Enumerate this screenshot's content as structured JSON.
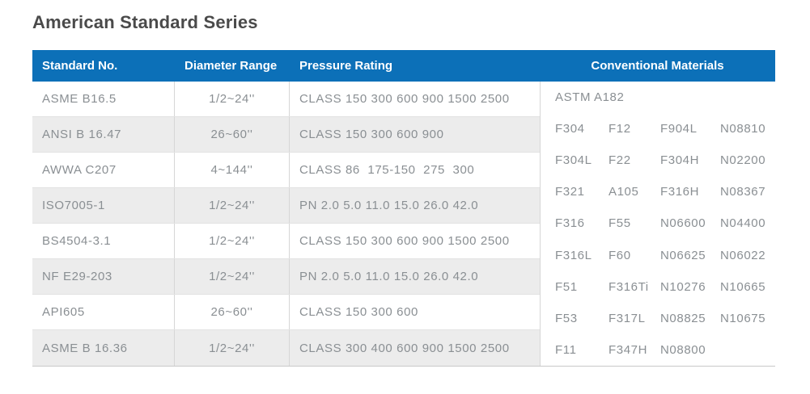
{
  "page": {
    "title": "American Standard Series"
  },
  "colors": {
    "accent_blue": "#0c70b8",
    "alt_row_gray": "#ececec",
    "cell_text_gray": "#8a8f93"
  },
  "table": {
    "headers": {
      "standard": "Standard No.",
      "diameter": "Diameter Range",
      "pressure": "Pressure Rating",
      "materials": "Conventional Materials"
    },
    "rows": [
      {
        "standard": "ASME B16.5",
        "diameter": "1/2~24''",
        "pressure": "CLASS 150 300 600 900 1500 2500"
      },
      {
        "standard": "ANSI B 16.47",
        "diameter": "26~60''",
        "pressure": "CLASS 150 300 600 900"
      },
      {
        "standard": "AWWA C207",
        "diameter": "4~144''",
        "pressure": "CLASS 86  175-150  275  300"
      },
      {
        "standard": "ISO7005-1",
        "diameter": "1/2~24''",
        "pressure": "PN 2.0 5.0 11.0 15.0 26.0 42.0"
      },
      {
        "standard": "BS4504-3.1",
        "diameter": "1/2~24''",
        "pressure": "CLASS 150 300 600 900 1500 2500"
      },
      {
        "standard": "NF E29-203",
        "diameter": "1/2~24''",
        "pressure": "PN 2.0 5.0 11.0 15.0 26.0 42.0"
      },
      {
        "standard": "API605",
        "diameter": "26~60''",
        "pressure": "CLASS 150 300 600"
      },
      {
        "standard": "ASME B 16.36",
        "diameter": "1/2~24''",
        "pressure": "CLASS 300 400 600 900 1500 2500"
      }
    ],
    "materials": {
      "heading": "ASTM A182",
      "grid": [
        [
          "F304",
          "F12",
          "F904L",
          "N08810"
        ],
        [
          "F304L",
          "F22",
          "F304H",
          "N02200"
        ],
        [
          "F321",
          "A105",
          "F316H",
          "N08367"
        ],
        [
          "F316",
          "F55",
          "N06600",
          "N04400"
        ],
        [
          "F316L",
          "F60",
          "N06625",
          "N06022"
        ],
        [
          "F51",
          "F316Ti",
          "N10276",
          "N10665"
        ],
        [
          "F53",
          "F317L",
          "N08825",
          "N10675"
        ],
        [
          "F11",
          "F347H",
          "N08800",
          ""
        ]
      ]
    }
  }
}
